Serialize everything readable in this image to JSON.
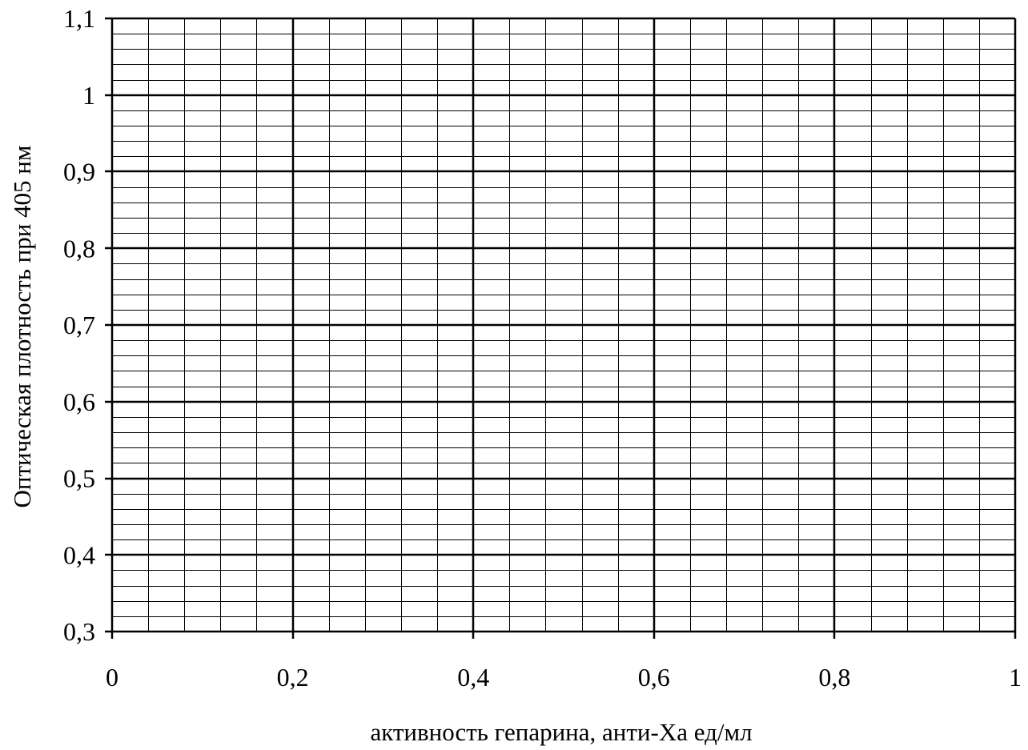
{
  "chart_data": {
    "type": "line",
    "title": "",
    "xlabel": "активность гепарина, анти-Ха ед/мл",
    "ylabel": "Оптическая плотность при 405 нм",
    "xlim": [
      0,
      1
    ],
    "ylim": [
      0.3,
      1.1
    ],
    "x_ticks": [
      0,
      0.2,
      0.4,
      0.6,
      0.8,
      1
    ],
    "x_tick_labels": [
      "0",
      "0,2",
      "0,4",
      "0,6",
      "0,8",
      "1"
    ],
    "y_ticks": [
      0.3,
      0.4,
      0.5,
      0.6,
      0.7,
      0.8,
      0.9,
      1.0,
      1.1
    ],
    "y_tick_labels": [
      "0,3",
      "0,4",
      "0,5",
      "0,6",
      "0,7",
      "0,8",
      "0,9",
      "1",
      "1,1"
    ],
    "x_minor_step": 0.04,
    "y_minor_step": 0.02,
    "grid": true,
    "series": [],
    "colors": {
      "major_grid": "#000000",
      "minor_grid": "#000000",
      "background": "#ffffff"
    }
  }
}
